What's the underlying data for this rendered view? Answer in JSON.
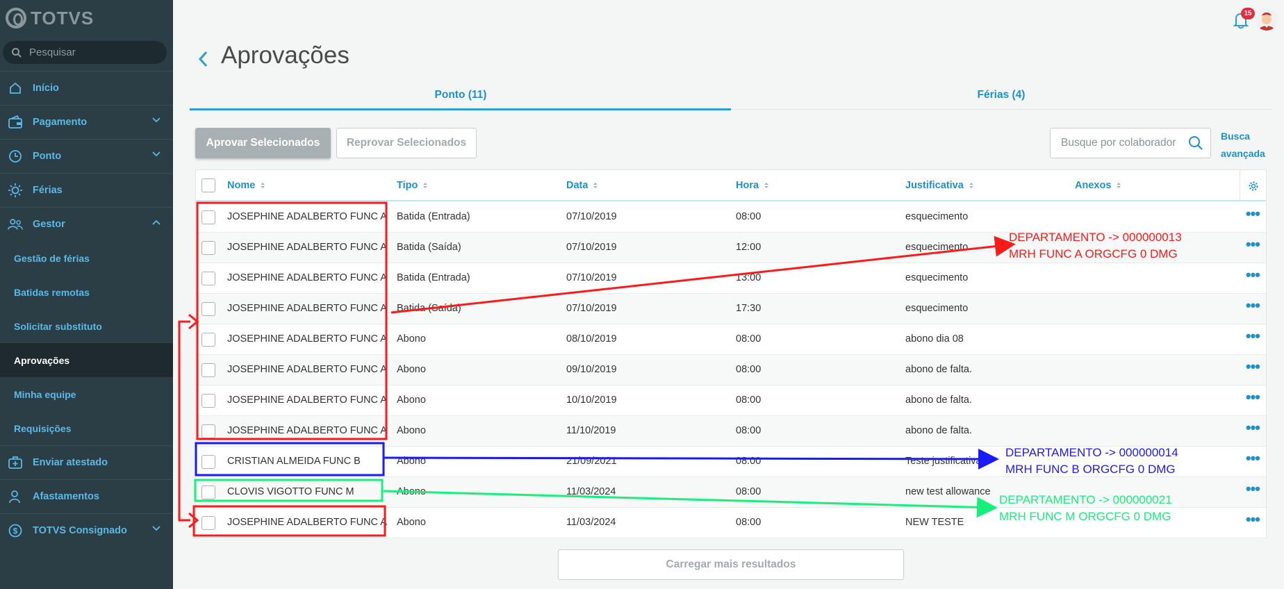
{
  "brand": {
    "name": "TOTVS"
  },
  "search": {
    "placeholder": "Pesquisar"
  },
  "sidebar": {
    "items": [
      {
        "label": "Início",
        "icon": "home-icon"
      },
      {
        "label": "Pagamento",
        "icon": "wallet-icon"
      },
      {
        "label": "Ponto",
        "icon": "clock-icon"
      },
      {
        "label": "Férias",
        "icon": "sun-icon"
      },
      {
        "label": "Gestor",
        "icon": "team-icon"
      },
      {
        "label": "Gestão de férias"
      },
      {
        "label": "Batidas remotas"
      },
      {
        "label": "Solicitar substituto"
      },
      {
        "label": "Aprovações"
      },
      {
        "label": "Minha equipe"
      },
      {
        "label": "Requisições"
      },
      {
        "label": "Enviar atestado",
        "icon": "medical-bag-icon"
      },
      {
        "label": "Afastamentos",
        "icon": "person-icon"
      },
      {
        "label": "TOTVS Consignado",
        "icon": "dollar-icon"
      }
    ]
  },
  "notifications": {
    "count": "15"
  },
  "page": {
    "title": "Aprovações"
  },
  "tabs": [
    {
      "label": "Ponto (11)",
      "active": true
    },
    {
      "label": "Férias (4)",
      "active": false
    }
  ],
  "actions": {
    "approve_label": "Aprovar Selecionados",
    "reprove_label": "Reprovar Selecionados",
    "collab_search_placeholder": "Busque por colaborador",
    "advanced_search_line1": "Busca",
    "advanced_search_line2": "avançada"
  },
  "table": {
    "columns": [
      "Nome",
      "Tipo",
      "Data",
      "Hora",
      "Justificativa",
      "Anexos"
    ],
    "rows": [
      {
        "nome": "JOSEPHINE ADALBERTO FUNC A",
        "tipo": "Batida (Entrada)",
        "data": "07/10/2019",
        "hora": "08:00",
        "justificativa": "esquecimento"
      },
      {
        "nome": "JOSEPHINE ADALBERTO FUNC A",
        "tipo": "Batida (Saída)",
        "data": "07/10/2019",
        "hora": "12:00",
        "justificativa": "esquecimento"
      },
      {
        "nome": "JOSEPHINE ADALBERTO FUNC A",
        "tipo": "Batida (Entrada)",
        "data": "07/10/2019",
        "hora": "13:00",
        "justificativa": "esquecimento"
      },
      {
        "nome": "JOSEPHINE ADALBERTO FUNC A",
        "tipo": "Batida (Saída)",
        "data": "07/10/2019",
        "hora": "17:30",
        "justificativa": "esquecimento"
      },
      {
        "nome": "JOSEPHINE ADALBERTO FUNC A",
        "tipo": "Abono",
        "data": "08/10/2019",
        "hora": "08:00",
        "justificativa": "abono dia 08"
      },
      {
        "nome": "JOSEPHINE ADALBERTO FUNC A",
        "tipo": "Abono",
        "data": "09/10/2019",
        "hora": "08:00",
        "justificativa": "abono de falta."
      },
      {
        "nome": "JOSEPHINE ADALBERTO FUNC A",
        "tipo": "Abono",
        "data": "10/10/2019",
        "hora": "08:00",
        "justificativa": "abono de falta."
      },
      {
        "nome": "JOSEPHINE ADALBERTO FUNC A",
        "tipo": "Abono",
        "data": "11/10/2019",
        "hora": "08:00",
        "justificativa": "abono de falta."
      },
      {
        "nome": "CRISTIAN ALMEIDA FUNC B",
        "tipo": "Abono",
        "data": "21/09/2021",
        "hora": "08:00",
        "justificativa": "Teste justificativa"
      },
      {
        "nome": "CLOVIS VIGOTTO FUNC M",
        "tipo": "Abono",
        "data": "11/03/2024",
        "hora": "08:00",
        "justificativa": "new test allowance"
      },
      {
        "nome": "JOSEPHINE ADALBERTO FUNC A",
        "tipo": "Abono",
        "data": "11/03/2024",
        "hora": "08:00",
        "justificativa": "NEW TESTE"
      }
    ]
  },
  "load_more_label": "Carregar mais resultados",
  "annotations": [
    {
      "line1": "DEPARTAMENTO -> 000000013",
      "line2": "MRH  FUNC  A  ORGCFG  0  DMG",
      "color": "#ff1a1a"
    },
    {
      "line1": "DEPARTAMENTO -> 000000014",
      "line2": "MRH  FUNC  B  ORGCFG  0  DMG",
      "color": "#1a1aff"
    },
    {
      "line1": "DEPARTAMENTO -> 000000021",
      "line2": "MRH  FUNC M ORGCFG  0  DMG",
      "color": "#16f07a"
    }
  ],
  "colors": {
    "sidebar_bg": "#2c3e45",
    "accent": "#1f91c9",
    "badge": "#e12d3c"
  }
}
